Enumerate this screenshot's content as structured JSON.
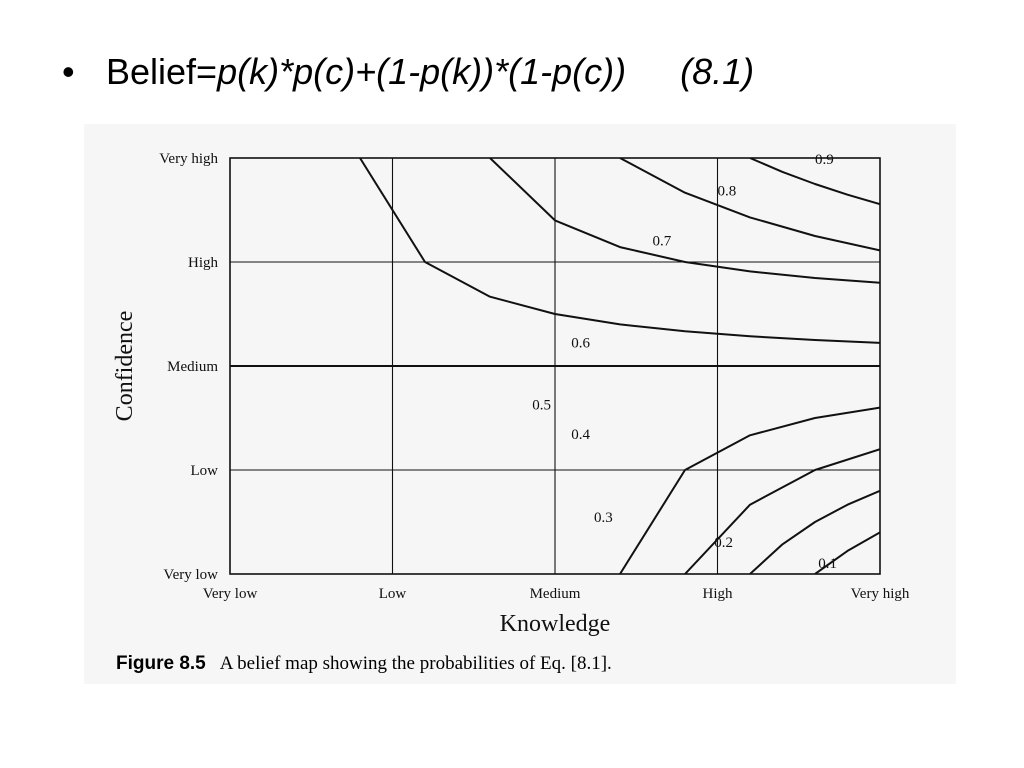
{
  "slide": {
    "bullet": "•",
    "title_word": "Belief=",
    "formula": "p(k)*p(c)+(1-p(k))*(1-p(c))",
    "equation_number": "(8.1)"
  },
  "caption": {
    "label": "Figure 8.5",
    "text": "A belief map showing the probabilities of Eq. [8.1]."
  },
  "chart_data": {
    "type": "line",
    "title": "",
    "xlabel": "Knowledge",
    "ylabel": "Confidence",
    "x_ticks": [
      "Very low",
      "Low",
      "Medium",
      "High",
      "Very high"
    ],
    "y_ticks": [
      "Very low",
      "Low",
      "Medium",
      "High",
      "Very high"
    ],
    "xlim": [
      0,
      1
    ],
    "ylim": [
      0,
      1
    ],
    "grid": true,
    "formula": "Belief = p(k)*p(c) + (1-p(k))*(1-p(c))",
    "series": [
      {
        "name": "0.9",
        "x": [
          0.8,
          0.85,
          0.9,
          0.95,
          1.0
        ],
        "y": [
          1.0,
          0.9667,
          0.9375,
          0.9118,
          0.8889
        ]
      },
      {
        "name": "0.8",
        "x": [
          0.6,
          0.7,
          0.8,
          0.9,
          1.0
        ],
        "y": [
          1.0,
          0.9167,
          0.8571,
          0.8125,
          0.7778
        ]
      },
      {
        "name": "0.7",
        "x": [
          0.4,
          0.5,
          0.6,
          0.7,
          0.8,
          0.9,
          1.0
        ],
        "y": [
          1.0,
          0.85,
          0.7857,
          0.75,
          0.7273,
          0.7115,
          0.7
        ]
      },
      {
        "name": "0.6",
        "x": [
          0.2,
          0.3,
          0.4,
          0.5,
          0.6,
          0.7,
          0.8,
          0.9,
          1.0
        ],
        "y": [
          1.0,
          0.75,
          0.6667,
          0.625,
          0.6,
          0.5833,
          0.5714,
          0.5625,
          0.5556
        ]
      },
      {
        "name": "0.5",
        "x": [
          0,
          1
        ],
        "y": [
          0.5,
          0.5
        ]
      },
      {
        "name": "0.4",
        "x": [
          0.6,
          0.7,
          0.8,
          0.9,
          1.0
        ],
        "y": [
          0.0,
          0.25,
          0.3333,
          0.375,
          0.4
        ]
      },
      {
        "name": "0.3",
        "x": [
          0.7,
          0.8,
          0.9,
          1.0
        ],
        "y": [
          0.0,
          0.1667,
          0.25,
          0.3
        ]
      },
      {
        "name": "0.2",
        "x": [
          0.8,
          0.85,
          0.9,
          0.95,
          1.0
        ],
        "y": [
          0.0,
          0.0714,
          0.125,
          0.1667,
          0.2
        ]
      },
      {
        "name": "0.1",
        "x": [
          0.9,
          0.95,
          1.0
        ],
        "y": [
          0.0,
          0.0556,
          0.1
        ]
      }
    ],
    "curve_labels": [
      {
        "text": "0.9",
        "x": 0.9,
        "y": 0.985
      },
      {
        "text": "0.8",
        "x": 0.75,
        "y": 0.91
      },
      {
        "text": "0.7",
        "x": 0.65,
        "y": 0.79
      },
      {
        "text": "0.6",
        "x": 0.525,
        "y": 0.545
      },
      {
        "text": "0.5",
        "x": 0.465,
        "y": 0.395
      },
      {
        "text": "0.4",
        "x": 0.525,
        "y": 0.325
      },
      {
        "text": "0.3",
        "x": 0.56,
        "y": 0.125
      },
      {
        "text": "0.2",
        "x": 0.745,
        "y": 0.065
      },
      {
        "text": "0.1",
        "x": 0.905,
        "y": 0.015
      }
    ]
  }
}
